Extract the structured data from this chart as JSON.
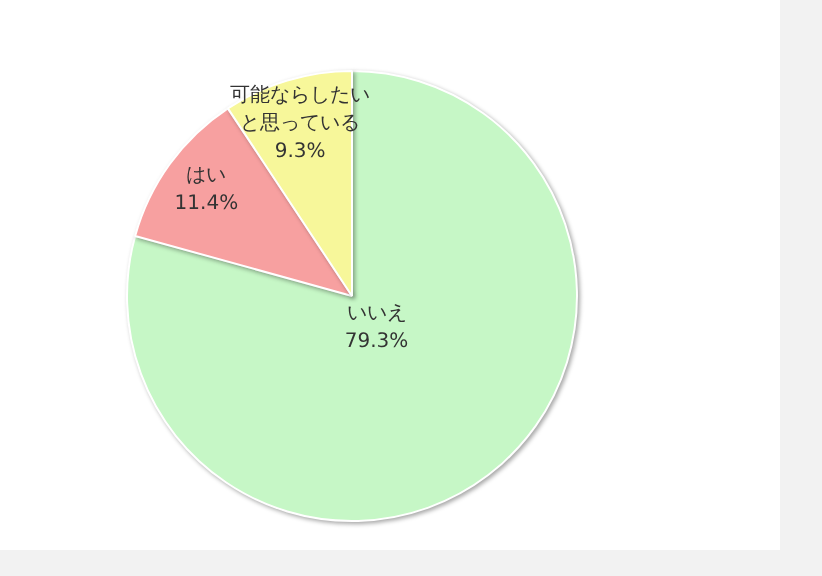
{
  "chart_data": {
    "type": "pie",
    "categories": [
      "いいえ",
      "はい",
      "可能ならしたいと思っている"
    ],
    "values": [
      79.3,
      11.4,
      9.3
    ],
    "colors": [
      "#c6f7c6",
      "#f7a0a0",
      "#f7f79a"
    ],
    "value_labels": [
      "79.3%",
      "11.4%",
      "9.3%"
    ],
    "legend": false
  }
}
